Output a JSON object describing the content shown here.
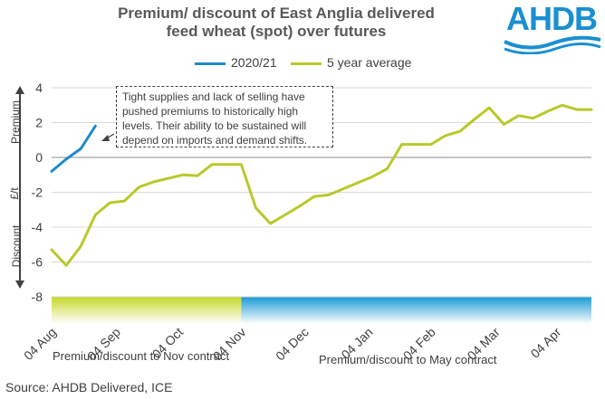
{
  "header": {
    "title_line1": "Premium/ discount of East Anglia delivered",
    "title_line2": "feed wheat (spot) over futures",
    "logo_text": "AHDB"
  },
  "legend": {
    "series1": "2020/21",
    "series2": "5 year average"
  },
  "annotation": "Tight supplies and lack of selling have pushed premiums to historically high levels. Their ability to be sustained will depend on imports and demand shifts.",
  "axis": {
    "premium_label": "Premium",
    "unit_label": "£/t",
    "discount_label": "Discount"
  },
  "contracts": {
    "nov_label": "Premium/discount to Nov contract",
    "may_label": "Premium/discount to May contract"
  },
  "source": "Source: AHDB Delivered, ICE",
  "colors": {
    "series_2020_21": "#1f8ac9",
    "five_year_avg": "#b8c92a",
    "nov_band_start": "#c6d82a",
    "may_band_start": "#1a9ad6"
  },
  "chart_data": {
    "type": "line",
    "title": "Premium/ discount of East Anglia delivered feed wheat (spot) over futures",
    "ylabel": "£/t",
    "ylim": [
      -8,
      4
    ],
    "yticks": [
      -8,
      -6,
      -4,
      -2,
      0,
      2,
      4
    ],
    "x_range_index": [
      0,
      37
    ],
    "x_tick_labels": [
      "04 Aug",
      "04 Sep",
      "04 Oct",
      "04 Nov",
      "04 Dec",
      "04 Jan",
      "04 Feb",
      "04 Mar",
      "04 Apr"
    ],
    "x_tick_positions": [
      0,
      4.4,
      8.7,
      13,
      17.3,
      21.7,
      26,
      30.4,
      34.6
    ],
    "band_split_index": 13,
    "series": [
      {
        "name": "2020/21",
        "x": [
          0,
          1,
          2,
          3
        ],
        "values": [
          -0.8,
          -0.1,
          0.5,
          1.8
        ]
      },
      {
        "name": "5 year average",
        "x": [
          0,
          1,
          2,
          3,
          4,
          5,
          6,
          7,
          8,
          9,
          10,
          11,
          12,
          13,
          14,
          15,
          16,
          17,
          18,
          19,
          20,
          21,
          22,
          23,
          24,
          25,
          26,
          27,
          28,
          29,
          30,
          31,
          32,
          33,
          34,
          35,
          36,
          37
        ],
        "values": [
          -5.3,
          -6.2,
          -5.1,
          -3.3,
          -2.6,
          -2.5,
          -1.7,
          -1.4,
          -1.2,
          -1.0,
          -1.05,
          -0.4,
          -0.4,
          -0.4,
          -2.9,
          -3.8,
          -3.3,
          -2.8,
          -2.25,
          -2.15,
          -1.8,
          -1.45,
          -1.1,
          -0.65,
          0.75,
          0.75,
          0.75,
          1.25,
          1.5,
          2.2,
          2.85,
          1.9,
          2.4,
          2.25,
          2.65,
          3.0,
          2.75,
          2.75
        ]
      }
    ]
  }
}
